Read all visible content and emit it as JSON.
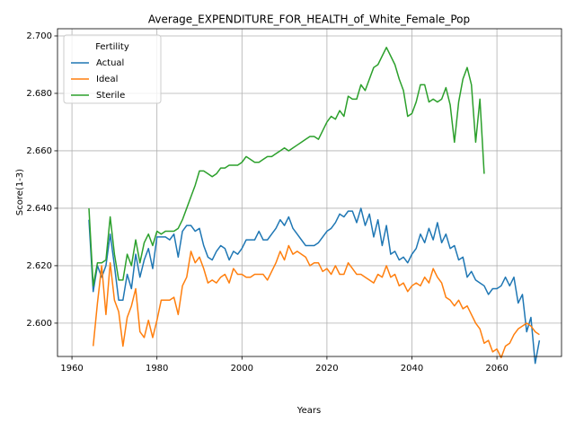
{
  "chart_data": {
    "type": "line",
    "title": "Average_EXPENDITURE_FOR_HEALTH_of_White_Female_Pop",
    "xlabel": "Years",
    "ylabel": "Score(1-3)",
    "legend_title": "Fertility",
    "legend": "upper left",
    "grid": true,
    "xlim": [
      1956.6,
      2075.2
    ],
    "xticks": [
      1960,
      1980,
      2000,
      2020,
      2040,
      2060
    ],
    "ylim": [
      2.5884,
      2.7025
    ],
    "yticks": [
      {
        "value": 2.6,
        "label": "2.600"
      },
      {
        "value": 2.62,
        "label": "2.620"
      },
      {
        "value": 2.64,
        "label": "2.640"
      },
      {
        "value": 2.66,
        "label": "2.660"
      },
      {
        "value": 2.68,
        "label": "2.680"
      },
      {
        "value": 2.7,
        "label": "2.700"
      }
    ],
    "x": [
      1964,
      1965,
      1966,
      1967,
      1968,
      1969,
      1970,
      1971,
      1972,
      1973,
      1974,
      1975,
      1976,
      1977,
      1978,
      1979,
      1980,
      1981,
      1982,
      1983,
      1984,
      1985,
      1986,
      1987,
      1988,
      1989,
      1990,
      1991,
      1992,
      1993,
      1994,
      1995,
      1996,
      1997,
      1998,
      1999,
      2000,
      2001,
      2002,
      2003,
      2004,
      2005,
      2006,
      2007,
      2008,
      2009,
      2010,
      2011,
      2012,
      2013,
      2014,
      2015,
      2016,
      2017,
      2018,
      2019,
      2020,
      2021,
      2022,
      2023,
      2024,
      2025,
      2026,
      2027,
      2028,
      2029,
      2030,
      2031,
      2032,
      2033,
      2034,
      2035,
      2036,
      2037,
      2038,
      2039,
      2040,
      2041,
      2042,
      2043,
      2044,
      2045,
      2046,
      2047,
      2048,
      2049,
      2050,
      2051,
      2052,
      2053,
      2054,
      2055,
      2056,
      2057,
      2058,
      2059,
      2060,
      2061,
      2062,
      2063,
      2064,
      2065,
      2066,
      2067,
      2068,
      2069,
      2070
    ],
    "series": [
      {
        "name": "Actual",
        "color": "#1f77b4",
        "values": [
          2.636,
          2.611,
          2.62,
          2.616,
          2.62,
          2.631,
          2.62,
          2.608,
          2.608,
          2.617,
          2.612,
          2.624,
          2.616,
          2.622,
          2.626,
          2.619,
          2.63,
          2.63,
          2.63,
          2.629,
          2.631,
          2.623,
          2.632,
          2.634,
          2.634,
          2.632,
          2.633,
          2.627,
          2.623,
          2.622,
          2.625,
          2.627,
          2.626,
          2.622,
          2.625,
          2.624,
          2.626,
          2.629,
          2.629,
          2.629,
          2.632,
          2.629,
          2.629,
          2.631,
          2.633,
          2.636,
          2.634,
          2.637,
          2.633,
          2.631,
          2.629,
          2.627,
          2.627,
          2.627,
          2.628,
          2.63,
          2.632,
          2.633,
          2.635,
          2.638,
          2.637,
          2.639,
          2.639,
          2.635,
          2.64,
          2.634,
          2.638,
          2.63,
          2.636,
          2.627,
          2.634,
          2.624,
          2.625,
          2.622,
          2.623,
          2.621,
          2.624,
          2.626,
          2.631,
          2.628,
          2.633,
          2.629,
          2.635,
          2.628,
          2.631,
          2.626,
          2.627,
          2.622,
          2.623,
          2.616,
          2.618,
          2.615,
          2.614,
          2.613,
          2.61,
          2.612,
          2.612,
          2.613,
          2.616,
          2.613,
          2.616,
          2.607,
          2.61,
          2.597,
          2.602,
          2.586,
          2.594
        ]
      },
      {
        "name": "Ideal",
        "color": "#ff7f0e",
        "values": [
          null,
          2.592,
          2.607,
          2.62,
          2.603,
          2.621,
          2.608,
          2.604,
          2.592,
          2.602,
          2.606,
          2.612,
          2.597,
          2.595,
          2.601,
          2.595,
          2.601,
          2.608,
          2.608,
          2.608,
          2.609,
          2.603,
          2.613,
          2.616,
          2.625,
          2.621,
          2.623,
          2.619,
          2.614,
          2.615,
          2.614,
          2.616,
          2.617,
          2.614,
          2.619,
          2.617,
          2.617,
          2.616,
          2.616,
          2.617,
          2.617,
          2.617,
          2.615,
          2.618,
          2.621,
          2.625,
          2.622,
          2.627,
          2.624,
          2.625,
          2.624,
          2.623,
          2.62,
          2.621,
          2.621,
          2.618,
          2.619,
          2.617,
          2.62,
          2.617,
          2.617,
          2.621,
          2.619,
          2.617,
          2.617,
          2.616,
          2.615,
          2.614,
          2.617,
          2.616,
          2.62,
          2.616,
          2.617,
          2.613,
          2.614,
          2.611,
          2.613,
          2.614,
          2.613,
          2.616,
          2.614,
          2.619,
          2.616,
          2.614,
          2.609,
          2.608,
          2.606,
          2.608,
          2.605,
          2.606,
          2.603,
          2.6,
          2.598,
          2.593,
          2.594,
          2.59,
          2.591,
          2.588,
          2.592,
          2.593,
          2.596,
          2.598,
          2.599,
          2.6,
          2.599,
          2.597,
          2.596
        ]
      },
      {
        "name": "Sterile",
        "color": "#2ca02c",
        "values": [
          2.64,
          2.613,
          2.621,
          2.621,
          2.622,
          2.637,
          2.624,
          2.615,
          2.615,
          2.624,
          2.62,
          2.629,
          2.621,
          2.628,
          2.631,
          2.627,
          2.632,
          2.631,
          2.632,
          2.632,
          2.632,
          2.633,
          2.636,
          2.64,
          2.644,
          2.648,
          2.653,
          2.653,
          2.652,
          2.651,
          2.652,
          2.654,
          2.654,
          2.655,
          2.655,
          2.655,
          2.656,
          2.658,
          2.657,
          2.656,
          2.656,
          2.657,
          2.658,
          2.658,
          2.659,
          2.66,
          2.661,
          2.66,
          2.661,
          2.662,
          2.663,
          2.664,
          2.665,
          2.665,
          2.664,
          2.667,
          2.67,
          2.672,
          2.671,
          2.674,
          2.672,
          2.679,
          2.678,
          2.678,
          2.683,
          2.681,
          2.685,
          2.689,
          2.69,
          2.693,
          2.696,
          2.693,
          2.69,
          2.685,
          2.681,
          2.672,
          2.673,
          2.677,
          2.683,
          2.683,
          2.677,
          2.678,
          2.677,
          2.678,
          2.682,
          2.676,
          2.663,
          2.677,
          2.685,
          2.689,
          2.683,
          2.663,
          2.678,
          2.652,
          null,
          null,
          null,
          null,
          null,
          null,
          null,
          null,
          null,
          null,
          null,
          null,
          null
        ]
      }
    ]
  }
}
